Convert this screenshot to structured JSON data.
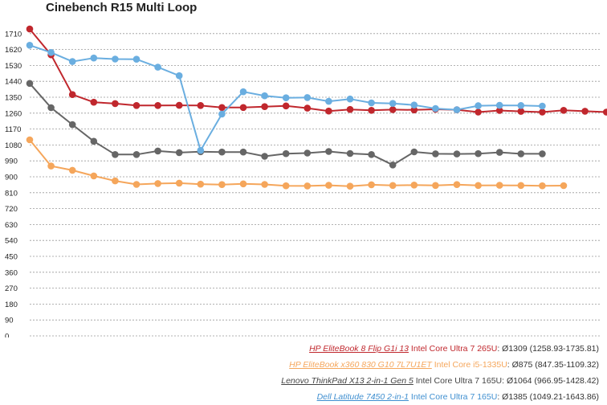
{
  "chart_data": {
    "type": "line",
    "title": "Cinebench R15 Multi Loop",
    "xlabel": "",
    "ylabel": "",
    "ylim": [
      0,
      1800
    ],
    "yticks": [
      0,
      90,
      180,
      270,
      360,
      450,
      540,
      630,
      720,
      810,
      900,
      990,
      1080,
      1170,
      1260,
      1350,
      1440,
      1530,
      1620,
      1710
    ],
    "grid": true,
    "legend_position": "bottom-right",
    "x": [
      1,
      2,
      3,
      4,
      5,
      6,
      7,
      8,
      9,
      10,
      11,
      12,
      13,
      14,
      15,
      16,
      17,
      18,
      19,
      20,
      21,
      22,
      23,
      24,
      25,
      26,
      27,
      28,
      29,
      30
    ],
    "series": [
      {
        "name": "HP EliteBook 8 Flip G1i 13",
        "color": "#c0272d",
        "values": [
          1736,
          1590,
          1365,
          1322,
          1314,
          1303,
          1303,
          1304,
          1303,
          1292,
          1292,
          1297,
          1301,
          1288,
          1272,
          1281,
          1276,
          1280,
          1278,
          1282,
          1279,
          1266,
          1275,
          1270,
          1266,
          1276,
          1271,
          1266,
          1282,
          0
        ]
      },
      {
        "name": "HP EliteBook x360 830 G10 7L7U1ET",
        "color": "#f5a65b",
        "values": [
          1109,
          961,
          937,
          905,
          877,
          857,
          862,
          864,
          858,
          856,
          860,
          857,
          849,
          848,
          852,
          847,
          855,
          851,
          853,
          851,
          856,
          851,
          852,
          851,
          849,
          850,
          0,
          0,
          0,
          0
        ]
      },
      {
        "name": "Lenovo ThinkPad X13 2-in-1 Gen 5",
        "color": "#666666",
        "values": [
          1428,
          1291,
          1195,
          1101,
          1026,
          1026,
          1046,
          1037,
          1042,
          1040,
          1040,
          1016,
          1031,
          1034,
          1043,
          1032,
          1026,
          967,
          1041,
          1030,
          1029,
          1031,
          1038,
          1030,
          1030,
          0,
          0,
          0,
          0,
          0
        ]
      },
      {
        "name": "Dell Latitude 7450 2-in-1",
        "color": "#6aaee0",
        "values": [
          1644,
          1603,
          1552,
          1572,
          1566,
          1565,
          1520,
          1472,
          1049,
          1255,
          1381,
          1358,
          1347,
          1348,
          1327,
          1340,
          1318,
          1315,
          1306,
          1286,
          1279,
          1302,
          1304,
          1303,
          1300,
          0,
          0,
          0,
          0,
          0
        ]
      }
    ]
  },
  "legend": [
    {
      "model": "HP EliteBook 8 Flip G1i 13",
      "cpu": " Intel Core Ultra 7 265U",
      "stats": ": Ø1309 (1258.93-1735.81)",
      "color": "#c0272d"
    },
    {
      "model": "HP EliteBook x360 830 G10 7L7U1ET",
      "cpu": " Intel Core i5-1335U",
      "stats": ": Ø875 (847.35-1109.32)",
      "color": "#f5a65b"
    },
    {
      "model": "Lenovo ThinkPad X13 2-in-1 Gen 5",
      "cpu": " Intel Core Ultra 7 165U",
      "stats": ": Ø1064 (966.95-1428.42)",
      "color": "#444444"
    },
    {
      "model": "Dell Latitude 7450 2-in-1",
      "cpu": " Intel Core Ultra 7 165U",
      "stats": ": Ø1385 (1049.21-1643.86)",
      "color": "#3f8fd0"
    }
  ]
}
